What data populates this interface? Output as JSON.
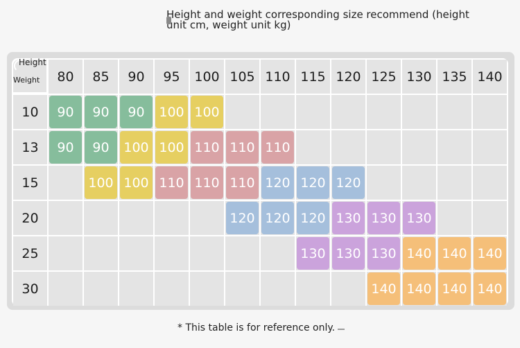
{
  "title": "Height and weight corresponding size recommend (height unit cm, weight unit kg)",
  "corner": {
    "height_label": "Height",
    "weight_label": "Weight"
  },
  "heights": [
    "80",
    "85",
    "90",
    "95",
    "100",
    "105",
    "110",
    "115",
    "120",
    "125",
    "130",
    "135",
    "140"
  ],
  "weights": [
    "10",
    "13",
    "15",
    "20",
    "25",
    "30"
  ],
  "colors": {
    "90": "#86bd9c",
    "100": "#e6cf61",
    "110": "#d9a3a6",
    "120": "#a5bfdc",
    "130": "#cba3dc",
    "140": "#f5bf79"
  },
  "rows": [
    [
      "90",
      "90",
      "90",
      "100",
      "100",
      "",
      "",
      "",
      "",
      "",
      "",
      "",
      ""
    ],
    [
      "90",
      "90",
      "100",
      "100",
      "110",
      "110",
      "110",
      "",
      "",
      "",
      "",
      "",
      ""
    ],
    [
      "",
      "100",
      "100",
      "110",
      "110",
      "110",
      "120",
      "120",
      "120",
      "",
      "",
      "",
      ""
    ],
    [
      "",
      "",
      "",
      "",
      "",
      "120",
      "120",
      "120",
      "130",
      "130",
      "130",
      "",
      ""
    ],
    [
      "",
      "",
      "",
      "",
      "",
      "",
      "",
      "130",
      "130",
      "130",
      "140",
      "140",
      "140"
    ],
    [
      "",
      "",
      "",
      "",
      "",
      "",
      "",
      "",
      "",
      "140",
      "140",
      "140",
      "140"
    ]
  ],
  "note": "* This table is for reference only."
}
